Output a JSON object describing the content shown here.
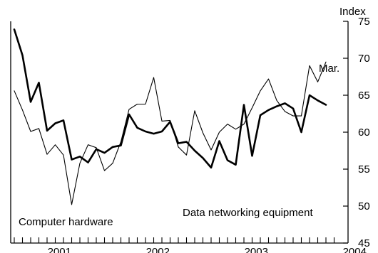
{
  "chart_data": {
    "type": "line",
    "unit_label": "Index",
    "ylim": [
      45,
      75
    ],
    "y_ticks": [
      45,
      50,
      55,
      60,
      65,
      70,
      75
    ],
    "x_ticks": [
      "2001",
      "2002",
      "2003",
      "2004"
    ],
    "x_range": [
      "2001-01",
      "2004-04"
    ],
    "grid": false,
    "annotations": {
      "end_label": "Mar."
    },
    "series": [
      {
        "name": "Data networking equipment",
        "line_weight": "thick",
        "color": "#000000",
        "x": [
          "2001-01",
          "2001-02",
          "2001-03",
          "2001-04",
          "2001-05",
          "2001-06",
          "2001-07",
          "2001-08",
          "2001-09",
          "2001-10",
          "2001-11",
          "2001-12",
          "2002-01",
          "2002-02",
          "2002-03",
          "2002-04",
          "2002-05",
          "2002-06",
          "2002-07",
          "2002-08",
          "2002-09",
          "2002-10",
          "2002-11",
          "2002-12",
          "2003-01",
          "2003-02",
          "2003-03",
          "2003-04",
          "2003-05",
          "2003-06",
          "2003-07",
          "2003-08",
          "2003-09",
          "2003-10",
          "2003-11",
          "2003-12",
          "2004-01",
          "2004-02",
          "2004-03"
        ],
        "values": [
          73.9,
          70.4,
          64.1,
          66.7,
          60.2,
          61.2,
          61.6,
          56.3,
          56.7,
          55.9,
          57.7,
          57.2,
          58.0,
          58.2,
          62.4,
          60.6,
          60.1,
          59.8,
          60.1,
          61.4,
          58.5,
          58.7,
          57.5,
          56.5,
          55.2,
          58.8,
          56.2,
          55.6,
          63.7,
          56.8,
          62.3,
          63.0,
          63.5,
          63.9,
          63.2,
          60.0,
          65.0,
          64.3,
          63.7
        ]
      },
      {
        "name": "Computer hardware",
        "line_weight": "thin",
        "color": "#000000",
        "x": [
          "2001-01",
          "2001-02",
          "2001-03",
          "2001-04",
          "2001-05",
          "2001-06",
          "2001-07",
          "2001-08",
          "2001-09",
          "2001-10",
          "2001-11",
          "2001-12",
          "2002-01",
          "2002-02",
          "2002-03",
          "2002-04",
          "2002-05",
          "2002-06",
          "2002-07",
          "2002-08",
          "2002-09",
          "2002-10",
          "2002-11",
          "2002-12",
          "2003-01",
          "2003-02",
          "2003-03",
          "2003-04",
          "2003-05",
          "2003-06",
          "2003-07",
          "2003-08",
          "2003-09",
          "2003-10",
          "2003-11",
          "2003-12",
          "2004-01",
          "2004-02",
          "2004-03"
        ],
        "values": [
          65.6,
          63.0,
          60.1,
          60.5,
          57.0,
          58.3,
          56.9,
          50.2,
          55.8,
          58.3,
          57.9,
          54.8,
          55.8,
          58.7,
          63.1,
          63.8,
          63.8,
          67.4,
          61.5,
          61.6,
          58.0,
          56.9,
          62.9,
          59.9,
          57.6,
          60.0,
          61.1,
          60.4,
          61.1,
          63.3,
          65.6,
          67.2,
          64.3,
          62.8,
          62.2,
          62.2,
          69.0,
          66.8,
          69.5
        ]
      }
    ],
    "series_labels": {
      "data_networking": "Data networking equipment",
      "computer_hardware": "Computer hardware"
    }
  }
}
